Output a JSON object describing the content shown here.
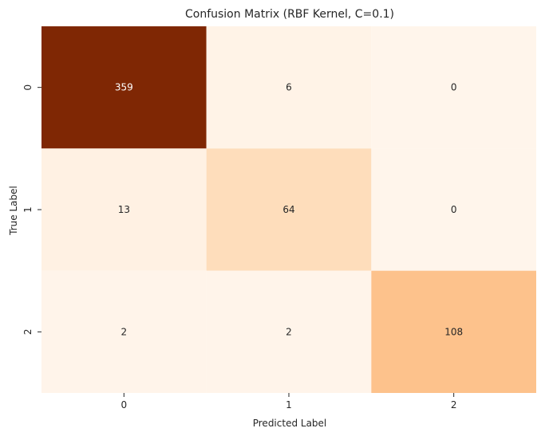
{
  "chart_data": {
    "type": "heatmap",
    "title": "Confusion Matrix (RBF Kernel, C=0.1)",
    "xlabel": "Predicted Label",
    "ylabel": "True Label",
    "x_categories": [
      "0",
      "1",
      "2"
    ],
    "y_categories": [
      "0",
      "1",
      "2"
    ],
    "values": [
      [
        359,
        6,
        0
      ],
      [
        13,
        64,
        0
      ],
      [
        2,
        2,
        108
      ]
    ],
    "colormap": "Oranges",
    "colorbar": false,
    "grid": false
  },
  "colors": {
    "scale": [
      "#fff5eb",
      "#fee6ce",
      "#fdd0a2",
      "#fdae6b",
      "#fd8d3c",
      "#f16913",
      "#d94801",
      "#a63603",
      "#7f2704"
    ],
    "text_dark": "#262626",
    "text_light": "#ffffff"
  }
}
